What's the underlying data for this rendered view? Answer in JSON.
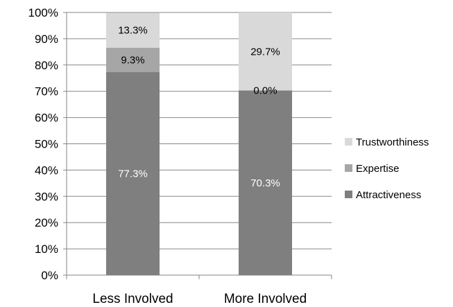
{
  "chart_data": {
    "type": "bar",
    "stacked": true,
    "categories": [
      "Less Involved",
      "More Involved"
    ],
    "series": [
      {
        "name": "Attractiveness",
        "values": [
          77.3,
          70.3
        ],
        "labels": [
          "77.3%",
          "70.3%"
        ],
        "color": "#7f7f7f",
        "label_color": "#ffffff"
      },
      {
        "name": "Expertise",
        "values": [
          9.3,
          0.0
        ],
        "labels": [
          "9.3%",
          "0.0%"
        ],
        "color": "#a6a6a6",
        "label_color": "#000000"
      },
      {
        "name": "Trustworthiness",
        "values": [
          13.3,
          29.7
        ],
        "labels": [
          "13.3%",
          "29.7%"
        ],
        "color": "#d9d9d9",
        "label_color": "#000000"
      }
    ],
    "ylim": [
      0,
      100
    ],
    "yticks": [
      0,
      10,
      20,
      30,
      40,
      50,
      60,
      70,
      80,
      90,
      100
    ],
    "ytick_labels": [
      "0%",
      "10%",
      "20%",
      "30%",
      "40%",
      "50%",
      "60%",
      "70%",
      "80%",
      "90%",
      "100%"
    ],
    "grid": true,
    "legend_position": "right",
    "legend_order": [
      "Trustworthiness",
      "Expertise",
      "Attractiveness"
    ]
  }
}
